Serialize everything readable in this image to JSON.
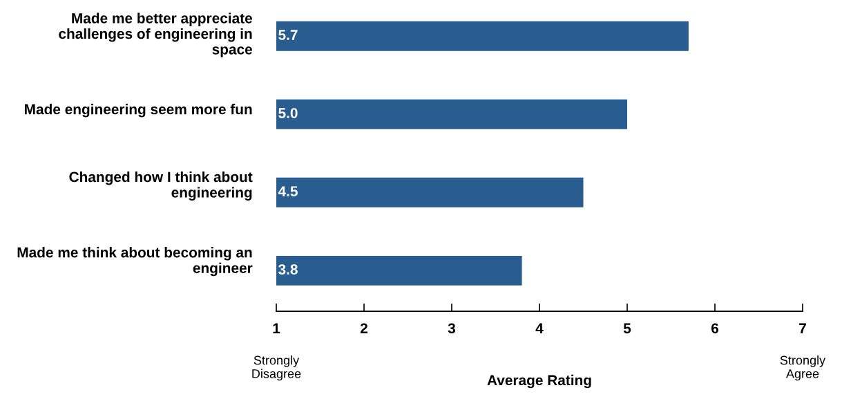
{
  "chart_data": {
    "type": "bar",
    "orientation": "horizontal",
    "xlabel": "Average Rating",
    "categories": [
      "Made me better appreciate challenges of engineering in space",
      "Made engineering seem more fun",
      "Changed how I think about engineering",
      "Made me think about becoming an engineer"
    ],
    "values": [
      5.7,
      5.0,
      4.5,
      3.8
    ],
    "color": "#2a5d8f",
    "value_labels": [
      "5.7",
      "5.0",
      "4.5",
      "3.8"
    ],
    "xlim": [
      1,
      7
    ],
    "xticks": [
      1,
      2,
      3,
      4,
      5,
      6,
      7
    ],
    "grid": false,
    "legend": false,
    "annotations": [
      "Strongly\nDisagree",
      "Strongly\nAgree"
    ]
  }
}
